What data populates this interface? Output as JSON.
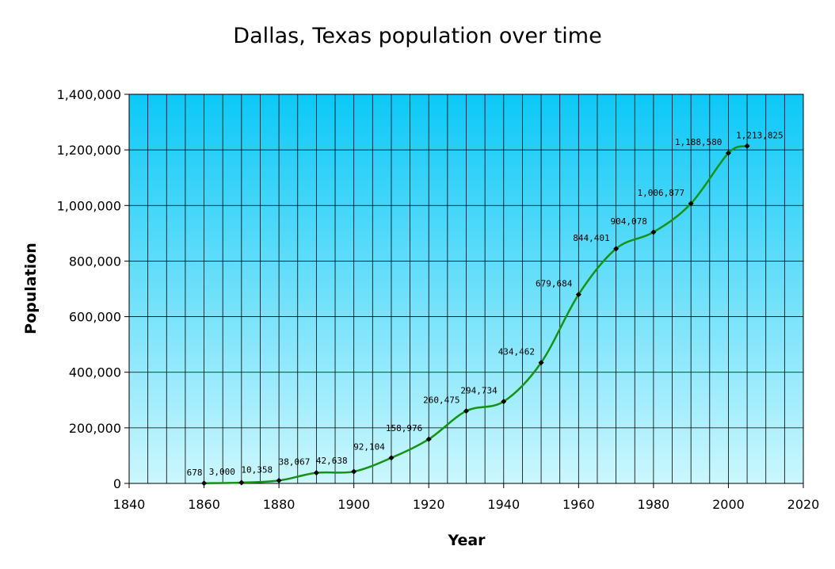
{
  "chart_data": {
    "type": "line",
    "title": "Dallas, Texas population over time",
    "xlabel": "Year",
    "ylabel": "Population",
    "xlim": [
      1840,
      2020
    ],
    "ylim": [
      0,
      1400000
    ],
    "x_ticks": [
      1840,
      1860,
      1880,
      1900,
      1920,
      1940,
      1960,
      1980,
      2000,
      2020
    ],
    "x_tick_labels": [
      "1840",
      "1860",
      "1880",
      "1900",
      "1920",
      "1940",
      "1960",
      "1980",
      "2000",
      "2020"
    ],
    "y_ticks": [
      0,
      200000,
      400000,
      600000,
      800000,
      1000000,
      1200000,
      1400000
    ],
    "y_tick_labels": [
      "0",
      "200,000",
      "400,000",
      "600,000",
      "800,000",
      "1,000,000",
      "1,200,000",
      "1,400,000"
    ],
    "grid": true,
    "x_minor_grid_step": 5,
    "smooth_line": true,
    "line_color": "#169316",
    "marker_color": "#000000",
    "background_gradient": [
      "#0cc8f7",
      "#ccf7fd"
    ],
    "series": [
      {
        "x": [
          1860,
          1870,
          1880,
          1890,
          1900,
          1910,
          1920,
          1930,
          1940,
          1950,
          1960,
          1970,
          1980,
          1990,
          2000,
          2005
        ],
        "values": [
          678,
          3000,
          10358,
          38067,
          42638,
          92104,
          158976,
          260475,
          294734,
          434462,
          679684,
          844401,
          904078,
          1006877,
          1188580,
          1213825
        ],
        "data_labels": [
          "678",
          "3,000",
          "10,358",
          "38,067",
          "42,638",
          "92,104",
          "158,976",
          "260,475",
          "294,734",
          "434,462",
          "679,684",
          "844,401",
          "904,078",
          "1,006,877",
          "1,188,580",
          "1,213,825"
        ]
      }
    ]
  }
}
